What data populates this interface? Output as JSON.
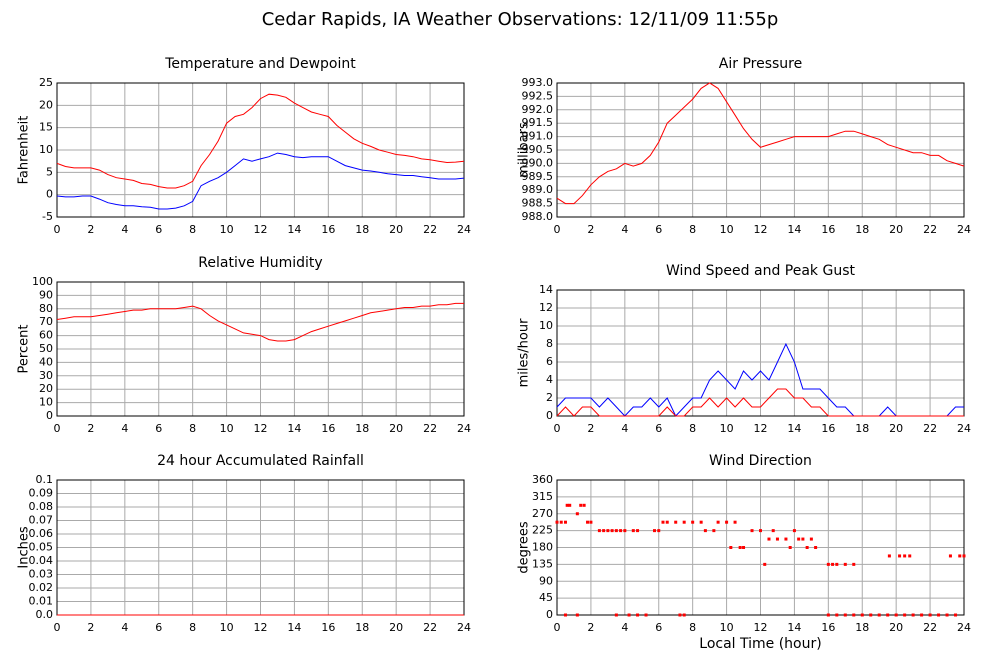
{
  "title": "Cedar Rapids, IA Weather Observations: 12/11/09 11:55p",
  "chart_data": [
    {
      "type": "line",
      "title": "Temperature and Dewpoint",
      "ylabel": "Fahrenheit",
      "x": [
        0,
        0.5,
        1,
        1.5,
        2,
        2.5,
        3,
        3.5,
        4,
        4.5,
        5,
        5.5,
        6,
        6.5,
        7,
        7.5,
        8,
        8.5,
        9,
        9.5,
        10,
        10.5,
        11,
        11.5,
        12,
        12.5,
        13,
        13.5,
        14,
        14.5,
        15,
        15.5,
        16,
        16.5,
        17,
        17.5,
        18,
        18.5,
        19,
        19.5,
        20,
        20.5,
        21,
        21.5,
        22,
        22.5,
        23,
        23.5,
        24
      ],
      "series": [
        {
          "color": "#ff0000",
          "values": [
            7,
            6.3,
            6,
            6,
            6,
            5.5,
            4.5,
            3.8,
            3.5,
            3.2,
            2.5,
            2.3,
            1.8,
            1.5,
            1.5,
            2,
            3,
            6.5,
            9,
            12,
            16,
            17.5,
            18,
            19.5,
            21.5,
            22.5,
            22.3,
            21.8,
            20.5,
            19.5,
            18.5,
            18,
            17.5,
            15.5,
            14,
            12.5,
            11.5,
            10.8,
            10,
            9.5,
            9,
            8.8,
            8.5,
            8,
            7.8,
            7.5,
            7.2,
            7.3,
            7.5
          ]
        },
        {
          "color": "#0000ff",
          "values": [
            -0.3,
            -0.5,
            -0.5,
            -0.3,
            -0.3,
            -1,
            -1.8,
            -2.2,
            -2.5,
            -2.5,
            -2.7,
            -2.8,
            -3.2,
            -3.2,
            -3,
            -2.5,
            -1.5,
            2,
            3,
            3.8,
            5,
            6.5,
            8,
            7.5,
            8,
            8.5,
            9.3,
            9,
            8.5,
            8.3,
            8.5,
            8.5,
            8.5,
            7.5,
            6.5,
            6,
            5.5,
            5.3,
            5,
            4.7,
            4.5,
            4.3,
            4.3,
            4,
            3.8,
            3.5,
            3.5,
            3.5,
            3.7
          ]
        }
      ],
      "xlim": [
        0,
        24
      ],
      "xticks": [
        0,
        2,
        4,
        6,
        8,
        10,
        12,
        14,
        16,
        18,
        20,
        22,
        24
      ],
      "ylim": [
        -5,
        25
      ],
      "yticks": [
        -5,
        0,
        5,
        10,
        15,
        20,
        25
      ],
      "grid": true
    },
    {
      "type": "line",
      "title": "Air Pressure",
      "ylabel": "millibars",
      "x": [
        0,
        0.5,
        1,
        1.5,
        2,
        2.5,
        3,
        3.5,
        4,
        4.5,
        5,
        5.5,
        6,
        6.5,
        7,
        7.5,
        8,
        8.5,
        9,
        9.5,
        10,
        10.5,
        11,
        11.5,
        12,
        12.5,
        13,
        13.5,
        14,
        14.5,
        15,
        15.5,
        16,
        16.5,
        17,
        17.5,
        18,
        18.5,
        19,
        19.5,
        20,
        20.5,
        21,
        21.5,
        22,
        22.5,
        23,
        23.5,
        24
      ],
      "series": [
        {
          "color": "#ff0000",
          "values": [
            988.7,
            988.5,
            988.5,
            988.8,
            989.2,
            989.5,
            989.7,
            989.8,
            990,
            989.9,
            990,
            990.3,
            990.8,
            991.5,
            991.8,
            992.1,
            992.4,
            992.8,
            993,
            992.8,
            992.3,
            991.8,
            991.3,
            990.9,
            990.6,
            990.7,
            990.8,
            990.9,
            991,
            991,
            991,
            991,
            991,
            991.1,
            991.2,
            991.2,
            991.1,
            991,
            990.9,
            990.7,
            990.6,
            990.5,
            990.4,
            990.4,
            990.3,
            990.3,
            990.1,
            990,
            989.9
          ]
        }
      ],
      "xlim": [
        0,
        24
      ],
      "xticks": [
        0,
        2,
        4,
        6,
        8,
        10,
        12,
        14,
        16,
        18,
        20,
        22,
        24
      ],
      "ylim": [
        988,
        993
      ],
      "yticks": [
        {
          "value": 988,
          "label": "988.0"
        },
        988.5,
        {
          "value": 989,
          "label": "989.0"
        },
        989.5,
        {
          "value": 990,
          "label": "990.0"
        },
        990.5,
        {
          "value": 991,
          "label": "991.0"
        },
        991.5,
        {
          "value": 992,
          "label": "992.0"
        },
        992.5,
        {
          "value": 993,
          "label": "993.0"
        }
      ],
      "grid": true
    },
    {
      "type": "line",
      "title": "Relative Humidity",
      "ylabel": "Percent",
      "x": [
        0,
        0.5,
        1,
        1.5,
        2,
        2.5,
        3,
        3.5,
        4,
        4.5,
        5,
        5.5,
        6,
        6.5,
        7,
        7.5,
        8,
        8.5,
        9,
        9.5,
        10,
        10.5,
        11,
        11.5,
        12,
        12.5,
        13,
        13.5,
        14,
        14.5,
        15,
        15.5,
        16,
        16.5,
        17,
        17.5,
        18,
        18.5,
        19,
        19.5,
        20,
        20.5,
        21,
        21.5,
        22,
        22.5,
        23,
        23.5,
        24
      ],
      "series": [
        {
          "color": "#ff0000",
          "values": [
            72,
            73,
            74,
            74,
            74,
            75,
            76,
            77,
            78,
            79,
            79,
            80,
            80,
            80,
            80,
            81,
            82,
            80,
            75,
            71,
            68,
            65,
            62,
            61,
            60,
            57,
            56,
            56,
            57,
            60,
            63,
            65,
            67,
            69,
            71,
            73,
            75,
            77,
            78,
            79,
            80,
            81,
            81,
            82,
            82,
            83,
            83,
            84,
            84
          ]
        }
      ],
      "xlim": [
        0,
        24
      ],
      "xticks": [
        0,
        2,
        4,
        6,
        8,
        10,
        12,
        14,
        16,
        18,
        20,
        22,
        24
      ],
      "ylim": [
        0,
        100
      ],
      "yticks": [
        0,
        10,
        20,
        30,
        40,
        50,
        60,
        70,
        80,
        90,
        100
      ],
      "grid": true
    },
    {
      "type": "line",
      "title": "Wind Speed and Peak Gust",
      "ylabel": "miles/hour",
      "x": [
        0,
        0.5,
        1,
        1.5,
        2,
        2.5,
        3,
        3.5,
        4,
        4.5,
        5,
        5.5,
        6,
        6.5,
        7,
        7.5,
        8,
        8.5,
        9,
        9.5,
        10,
        10.5,
        11,
        11.5,
        12,
        12.5,
        13,
        13.5,
        14,
        14.5,
        15,
        15.5,
        16,
        16.5,
        17,
        17.5,
        18,
        18.5,
        19,
        19.5,
        20,
        20.5,
        21,
        21.5,
        22,
        22.5,
        23,
        23.5,
        24
      ],
      "series": [
        {
          "color": "#0000ff",
          "values": [
            1,
            2,
            2,
            2,
            2,
            1,
            2,
            1,
            0,
            1,
            1,
            2,
            1,
            2,
            0,
            1,
            2,
            2,
            4,
            5,
            4,
            3,
            5,
            4,
            5,
            4,
            6,
            8,
            6,
            3,
            3,
            3,
            2,
            1,
            1,
            0,
            0,
            0,
            0,
            1,
            0,
            0,
            0,
            0,
            0,
            0,
            0,
            1,
            1
          ]
        },
        {
          "color": "#ff0000",
          "values": [
            0,
            1,
            0,
            1,
            1,
            0,
            0,
            0,
            0,
            0,
            0,
            0,
            0,
            1,
            0,
            0,
            1,
            1,
            2,
            1,
            2,
            1,
            2,
            1,
            1,
            2,
            3,
            3,
            2,
            2,
            1,
            1,
            0,
            0,
            0,
            0,
            0,
            0,
            0,
            0,
            0,
            0,
            0,
            0,
            0,
            0,
            0,
            0,
            0
          ]
        }
      ],
      "xlim": [
        0,
        24
      ],
      "xticks": [
        0,
        2,
        4,
        6,
        8,
        10,
        12,
        14,
        16,
        18,
        20,
        22,
        24
      ],
      "ylim": [
        0,
        14
      ],
      "yticks": [
        0,
        2,
        4,
        6,
        8,
        10,
        12,
        14
      ],
      "grid": true
    },
    {
      "type": "line",
      "title": "24 hour Accumulated Rainfall",
      "ylabel": "Inches",
      "x": [
        0,
        24
      ],
      "series": [
        {
          "color": "#ff0000",
          "values": [
            0,
            0
          ]
        }
      ],
      "xlim": [
        0,
        24
      ],
      "xticks": [
        0,
        2,
        4,
        6,
        8,
        10,
        12,
        14,
        16,
        18,
        20,
        22,
        24
      ],
      "ylim": [
        0,
        0.1
      ],
      "yticks": [
        {
          "value": 0,
          "label": "0.0"
        },
        0.01,
        0.02,
        0.03,
        0.04,
        0.05,
        0.06,
        0.07,
        0.08,
        0.09,
        0.1
      ],
      "grid": true
    },
    {
      "type": "scatter",
      "title": "Wind Direction",
      "ylabel": "degrees",
      "xlabel": "Local Time (hour)",
      "color": "#ff0000",
      "x": [
        0,
        0.25,
        0.5,
        0.6,
        0.75,
        1.2,
        1.4,
        1.6,
        1.8,
        2,
        2.5,
        2.75,
        3,
        3.25,
        3.5,
        3.75,
        4,
        4.5,
        4.75,
        5.75,
        6,
        6.25,
        6.5,
        7,
        7.5,
        8,
        8.5,
        8.75,
        9.25,
        9.5,
        10,
        10.25,
        10.5,
        10.8,
        11,
        11.5,
        12,
        12.25,
        12.5,
        12.75,
        13,
        13.5,
        13.75,
        14,
        14.25,
        14.5,
        14.75,
        15,
        15.25,
        16,
        16.25,
        16.5,
        17,
        17.5,
        19.6,
        20.2,
        20.5,
        20.8,
        23.2,
        23.75,
        24,
        0.5,
        1.2,
        3.5,
        4.25,
        4.75,
        5.25,
        7.25,
        7.5,
        16,
        16.5,
        17,
        17.5,
        18,
        18.5,
        19,
        19.5,
        20,
        20.5,
        21,
        21.5,
        22,
        22.5,
        23,
        23.5
      ],
      "values": [
        247.5,
        247.5,
        247.5,
        292.5,
        292.5,
        270,
        292.5,
        292.5,
        247.5,
        247.5,
        225,
        225,
        225,
        225,
        225,
        225,
        225,
        225,
        225,
        225,
        225,
        247.5,
        247.5,
        247.5,
        247.5,
        247.5,
        247.5,
        225,
        225,
        247.5,
        247.5,
        180,
        247.5,
        180,
        180,
        225,
        225,
        135,
        202.5,
        225,
        202.5,
        202.5,
        180,
        225,
        202.5,
        202.5,
        180,
        202.5,
        180,
        135,
        135,
        135,
        135,
        135,
        157.5,
        157.5,
        157.5,
        157.5,
        157.5,
        157.5,
        157.5,
        0,
        0,
        0,
        0,
        0,
        0,
        0,
        0,
        0,
        0,
        0,
        0,
        0,
        0,
        0,
        0,
        0,
        0,
        0,
        0,
        0,
        0,
        0,
        0
      ],
      "xlim": [
        0,
        24
      ],
      "xticks": [
        0,
        2,
        4,
        6,
        8,
        10,
        12,
        14,
        16,
        18,
        20,
        22,
        24
      ],
      "ylim": [
        0,
        360
      ],
      "yticks": [
        0,
        45,
        90,
        135,
        180,
        225,
        270,
        315,
        360
      ],
      "grid": true
    }
  ]
}
